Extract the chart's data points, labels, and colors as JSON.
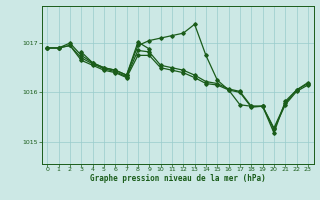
{
  "title": "Graphe pression niveau de la mer (hPa)",
  "background_color": "#cce8e5",
  "plot_bg_color": "#cce8e5",
  "grid_color": "#99cccc",
  "line_color": "#1a5c1a",
  "xlim": [
    -0.5,
    23.5
  ],
  "ylim": [
    1014.55,
    1017.75
  ],
  "yticks": [
    1015,
    1016,
    1017
  ],
  "xticks": [
    0,
    1,
    2,
    3,
    4,
    5,
    6,
    7,
    8,
    9,
    10,
    11,
    12,
    13,
    14,
    15,
    16,
    17,
    18,
    19,
    20,
    21,
    22,
    23
  ],
  "series": [
    {
      "x": [
        0,
        1,
        2,
        3,
        4,
        5,
        6,
        7,
        8,
        9,
        10,
        11,
        12,
        13,
        14,
        15,
        16,
        17,
        18,
        19,
        20,
        21,
        22,
        23
      ],
      "y": [
        1016.9,
        1016.9,
        1017.0,
        1016.75,
        1016.6,
        1016.5,
        1016.45,
        1016.35,
        1016.95,
        1017.05,
        1017.1,
        1017.15,
        1017.2,
        1017.38,
        1016.75,
        1016.25,
        1016.05,
        1015.75,
        1015.72,
        1015.72,
        1015.18,
        1015.82,
        1016.05,
        1016.2
      ]
    },
    {
      "x": [
        0,
        1,
        2,
        3,
        4,
        5,
        6,
        7,
        8,
        9,
        10,
        11,
        12,
        13,
        14,
        15,
        16,
        17,
        18,
        19,
        20,
        21,
        22,
        23
      ],
      "y": [
        1016.9,
        1016.9,
        1016.95,
        1016.7,
        1016.58,
        1016.48,
        1016.42,
        1016.32,
        1016.85,
        1016.82,
        1016.55,
        1016.5,
        1016.45,
        1016.35,
        1016.22,
        1016.18,
        1016.07,
        1016.02,
        1015.72,
        1015.72,
        1015.28,
        1015.78,
        1016.05,
        1016.18
      ]
    },
    {
      "x": [
        0,
        1,
        2,
        3,
        4,
        5,
        6,
        7,
        8,
        9,
        10,
        11,
        12,
        13,
        14,
        15,
        16,
        17,
        18,
        19,
        20,
        21,
        22,
        23
      ],
      "y": [
        1016.9,
        1016.9,
        1016.95,
        1016.65,
        1016.55,
        1016.45,
        1016.4,
        1016.3,
        1016.75,
        1016.75,
        1016.5,
        1016.45,
        1016.4,
        1016.3,
        1016.18,
        1016.15,
        1016.05,
        1016.0,
        1015.7,
        1015.72,
        1015.25,
        1015.75,
        1016.02,
        1016.15
      ]
    },
    {
      "x": [
        3,
        4,
        5,
        6,
        7,
        8,
        9
      ],
      "y": [
        1016.82,
        1016.6,
        1016.5,
        1016.45,
        1016.35,
        1017.02,
        1016.88
      ]
    }
  ]
}
